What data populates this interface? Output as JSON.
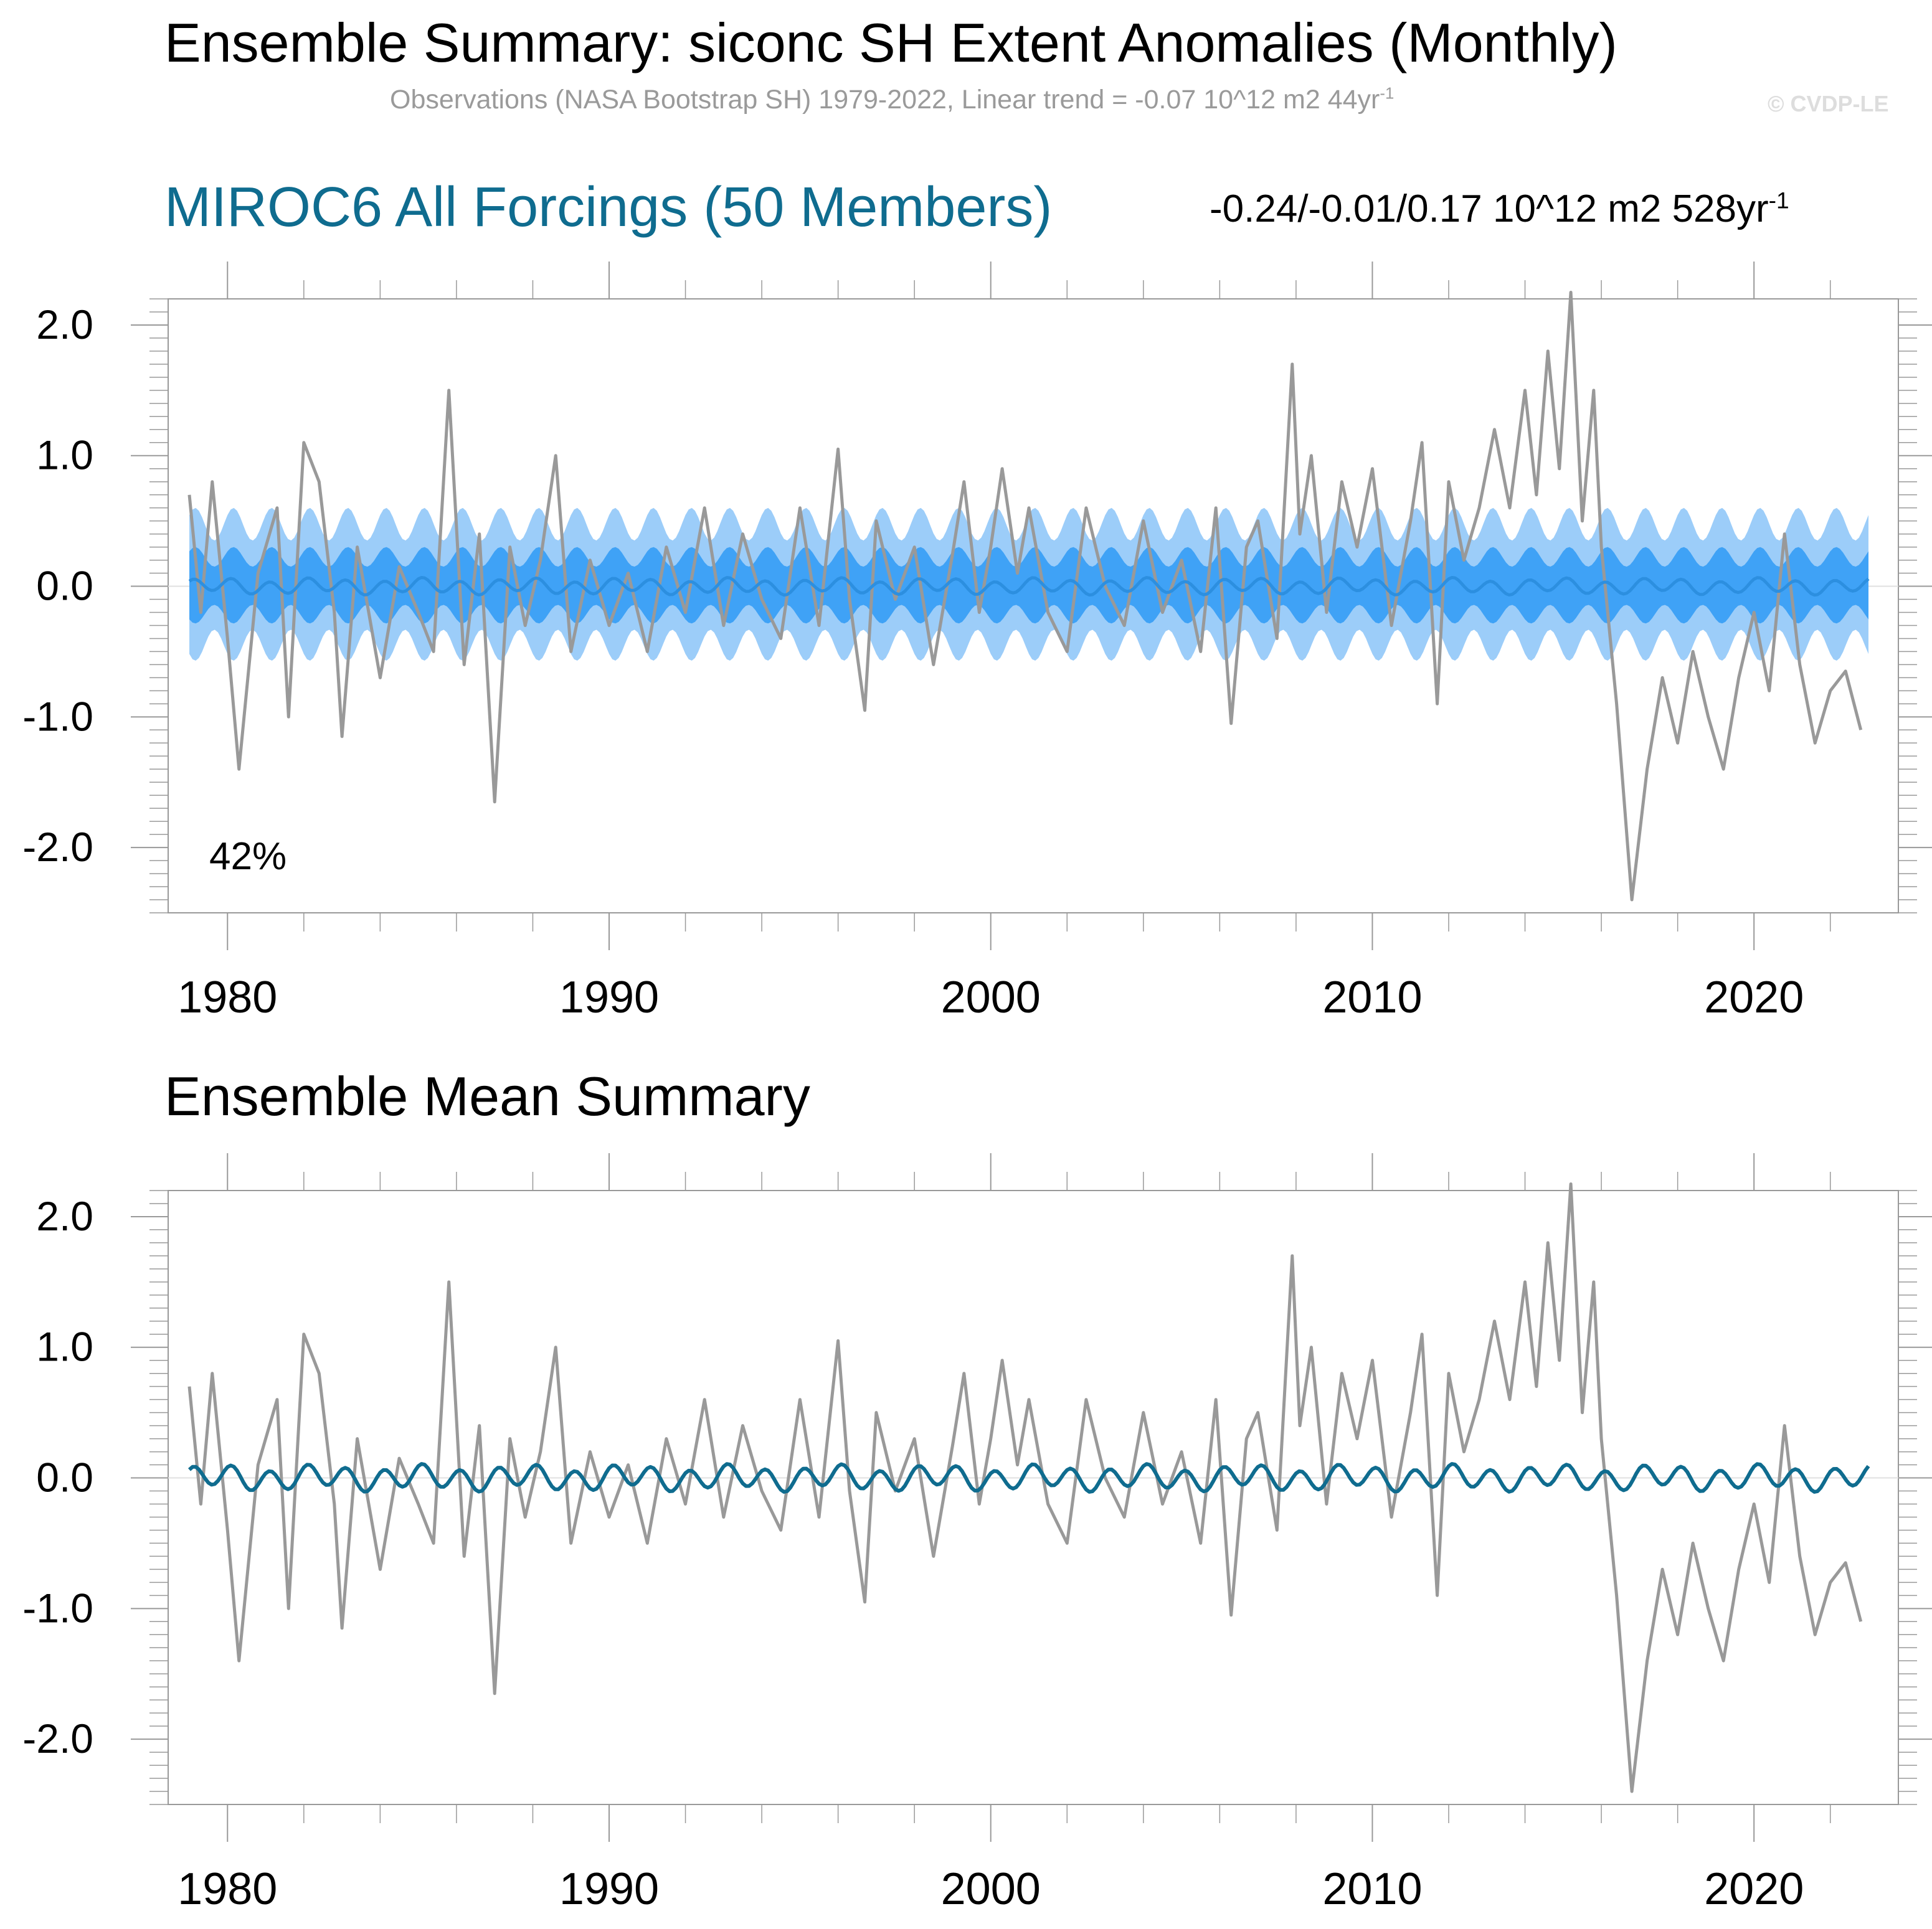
{
  "header": {
    "title": "Ensemble Summary: siconc SH Extent Anomalies (Monthly)",
    "obs_subtitle_main": "Observations (NASA Bootstrap SH) 1979-2022, Linear trend = -0.07 10^12 m2 44yr",
    "obs_subtitle_sup": "-1",
    "copyright": "© CVDP-LE"
  },
  "panel_top": {
    "title": "MIROC6 All Forcings (50 Members)",
    "trend_main": "-0.24/-0.01/0.17 10^12 m2 528yr",
    "trend_sup": "-1",
    "percent_label": "42%"
  },
  "panel_bottom": {
    "title": "Ensemble Mean Summary"
  },
  "colors": {
    "observations": "#999999",
    "ensemble_mean_top": "#2c8fe0",
    "ensemble_mean_bottom": "#0f6c8f",
    "spread_outer": "#9ccdf9",
    "spread_inner": "#3fa2f6",
    "frame": "#999999"
  },
  "chart_data": [
    {
      "type": "line",
      "name": "top-panel",
      "x_range": [
        1979,
        2023
      ],
      "ylim": [
        -2.5,
        2.2
      ],
      "x_ticks": [
        1980,
        1990,
        2000,
        2010,
        2020
      ],
      "x_tick_labels": [
        "1980",
        "1990",
        "2000",
        "2010",
        "2020"
      ],
      "y_ticks": [
        2,
        1,
        0,
        -1,
        -2
      ],
      "y_tick_labels": [
        "2.0",
        "1.0",
        "0.0",
        "-1.0",
        "-2.0"
      ],
      "series": [
        {
          "name": "Observations (NASA Bootstrap SH)",
          "role": "observations",
          "x": [
            1979.0,
            1979.3,
            1979.6,
            1980.0,
            1980.3,
            1980.8,
            1981.3,
            1981.6,
            1982.0,
            1982.4,
            1982.8,
            1983.0,
            1983.4,
            1984.0,
            1984.5,
            1985.0,
            1985.4,
            1985.8,
            1986.2,
            1986.6,
            1987.0,
            1987.4,
            1987.8,
            1988.2,
            1988.6,
            1989.0,
            1989.5,
            1990.0,
            1990.5,
            1991.0,
            1991.5,
            1992.0,
            1992.5,
            1993.0,
            1993.5,
            1994.0,
            1994.5,
            1995.0,
            1995.5,
            1996.0,
            1996.3,
            1996.7,
            1997.0,
            1997.5,
            1998.0,
            1998.5,
            1999.0,
            1999.3,
            1999.7,
            2000.0,
            2000.3,
            2000.7,
            2001.0,
            2001.5,
            2002.0,
            2002.5,
            2003.0,
            2003.5,
            2004.0,
            2004.5,
            2005.0,
            2005.5,
            2005.9,
            2006.3,
            2006.7,
            2007.0,
            2007.5,
            2007.9,
            2008.1,
            2008.4,
            2008.8,
            2009.2,
            2009.6,
            2010.0,
            2010.5,
            2011.0,
            2011.3,
            2011.7,
            2012.0,
            2012.4,
            2012.8,
            2013.2,
            2013.6,
            2014.0,
            2014.3,
            2014.6,
            2014.9,
            2015.2,
            2015.5,
            2015.8,
            2016.0,
            2016.4,
            2016.8,
            2017.2,
            2017.6,
            2018.0,
            2018.4,
            2018.8,
            2019.2,
            2019.6,
            2020.0,
            2020.4,
            2020.8,
            2021.2,
            2021.6,
            2022.0,
            2022.4,
            2022.8
          ],
          "y": [
            0.7,
            -0.2,
            0.8,
            -0.4,
            -1.4,
            0.1,
            0.6,
            -1.0,
            1.1,
            0.8,
            -0.2,
            -1.15,
            0.3,
            -0.7,
            0.15,
            -0.2,
            -0.5,
            1.5,
            -0.6,
            0.4,
            -1.65,
            0.3,
            -0.3,
            0.2,
            1.0,
            -0.5,
            0.2,
            -0.3,
            0.1,
            -0.5,
            0.3,
            -0.2,
            0.6,
            -0.3,
            0.4,
            -0.1,
            -0.4,
            0.6,
            -0.3,
            1.05,
            -0.1,
            -0.95,
            0.5,
            -0.1,
            0.3,
            -0.6,
            0.25,
            0.8,
            -0.2,
            0.3,
            0.9,
            0.1,
            0.6,
            -0.2,
            -0.5,
            0.6,
            0.0,
            -0.3,
            0.5,
            -0.2,
            0.2,
            -0.5,
            0.6,
            -1.05,
            0.3,
            0.5,
            -0.4,
            1.7,
            0.4,
            1.0,
            -0.2,
            0.8,
            0.3,
            0.9,
            -0.3,
            0.5,
            1.1,
            -0.9,
            0.8,
            0.2,
            0.6,
            1.2,
            0.6,
            1.5,
            0.7,
            1.8,
            0.9,
            2.25,
            0.5,
            1.5,
            0.3,
            -0.9,
            -2.4,
            -1.4,
            -0.7,
            -1.2,
            -0.5,
            -1.0,
            -1.4,
            -0.7,
            -0.2,
            -0.8,
            0.4,
            -0.6,
            -1.2,
            -0.8,
            -0.65,
            -1.1
          ]
        },
        {
          "name": "MIROC6 ensemble mean",
          "role": "ensemble-mean",
          "amplitude": 0.05
        }
      ],
      "spread_bands": [
        {
          "name": "outer range",
          "amplitude_min": 0.35,
          "amplitude_max": 0.6
        },
        {
          "name": "inner range",
          "amplitude_min": 0.15,
          "amplitude_max": 0.3
        }
      ]
    },
    {
      "type": "line",
      "name": "bottom-panel",
      "x_range": [
        1979,
        2023
      ],
      "ylim": [
        -2.5,
        2.2
      ],
      "x_ticks": [
        1980,
        1990,
        2000,
        2010,
        2020
      ],
      "x_tick_labels": [
        "1980",
        "1990",
        "2000",
        "2010",
        "2020"
      ],
      "y_ticks": [
        2,
        1,
        0,
        -1,
        -2
      ],
      "y_tick_labels": [
        "2.0",
        "1.0",
        "0.0",
        "-1.0",
        "-2.0"
      ],
      "series": [
        {
          "name": "Observations (NASA Bootstrap SH)",
          "role": "observations",
          "same_as_top": true
        },
        {
          "name": "MIROC6 ensemble mean",
          "role": "ensemble-mean",
          "amplitude": 0.08
        }
      ]
    }
  ]
}
